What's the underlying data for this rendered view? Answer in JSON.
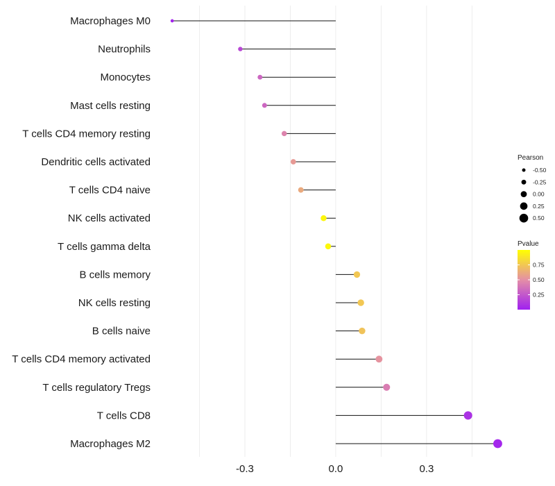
{
  "chart_data": {
    "type": "lollipop",
    "categories": [
      "Macrophages M0",
      "Neutrophils",
      "Monocytes",
      "Mast cells resting",
      "T cells CD4 memory resting",
      "Dendritic cells activated",
      "T cells CD4 naive",
      "NK cells activated",
      "T cells gamma delta",
      "B cells memory",
      "NK cells resting",
      "B cells naive",
      "T cells CD4 memory activated",
      "T cells regulatory  Tregs",
      "T cells CD8",
      "Macrophages M2"
    ],
    "values": [
      -0.54,
      -0.315,
      -0.25,
      -0.235,
      -0.17,
      -0.14,
      -0.115,
      -0.04,
      -0.025,
      0.07,
      0.083,
      0.087,
      0.143,
      0.168,
      0.437,
      0.535
    ],
    "pvalues": [
      0.02,
      0.18,
      0.32,
      0.32,
      0.45,
      0.55,
      0.62,
      0.96,
      0.97,
      0.75,
      0.75,
      0.73,
      0.52,
      0.42,
      0.08,
      0.03
    ],
    "title": "",
    "xlabel": "",
    "ylabel": "",
    "xlim": [
      -0.6,
      0.55
    ],
    "x_ticks": [
      -0.3,
      0.0,
      0.3
    ],
    "x_tick_labels": [
      "-0.3",
      "0.0",
      "0.3"
    ],
    "baseline": 0,
    "grid": true,
    "legend": {
      "placement": "right",
      "size_title": "Pearson",
      "size_values": [
        -0.5,
        -0.25,
        0.0,
        0.25,
        0.5
      ],
      "size_labels": [
        "-0.50",
        "-0.25",
        "0.00",
        "0.25",
        "0.50"
      ],
      "color_title": "Pvalue",
      "color_ticks": [
        0.25,
        0.5,
        0.75
      ],
      "color_tick_labels": [
        "0.25",
        "0.50",
        "0.75"
      ],
      "color_range": [
        0.0,
        1.0
      ],
      "color_low": "#a020f0",
      "color_high": "#ffff00"
    }
  }
}
